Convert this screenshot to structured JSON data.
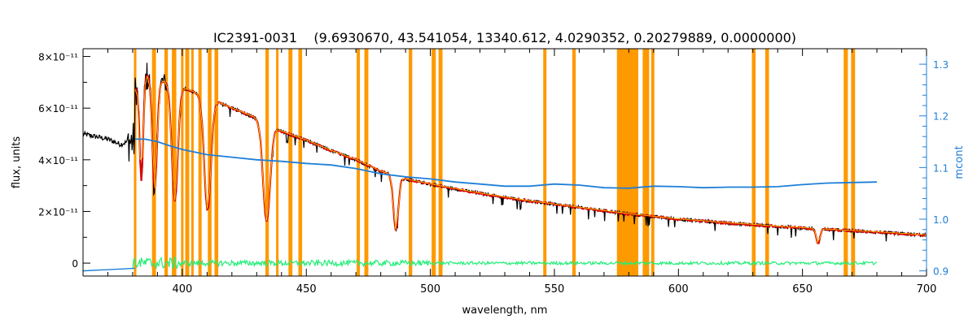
{
  "chart_data": {
    "type": "line",
    "title": "IC2391-0031    (9.6930670, 43.541054, 13340.612, 4.0290352, 0.20279889, 0.0000000)",
    "xlabel": "wavelength, nm",
    "ylabel_left": "flux, units",
    "ylabel_right": "mcont",
    "xlim": [
      360,
      700
    ],
    "ylim_left": [
      -5e-12,
      8.3e-11
    ],
    "ylim_right": [
      0.89,
      1.33
    ],
    "x_ticks": [
      400,
      450,
      500,
      550,
      600,
      650,
      700
    ],
    "y_left_ticks": [
      {
        "value": 0,
        "label": "0"
      },
      {
        "value": 2e-11,
        "label": "2×10⁻¹¹"
      },
      {
        "value": 4e-11,
        "label": "4×10⁻¹¹"
      },
      {
        "value": 6e-11,
        "label": "6×10⁻¹¹"
      },
      {
        "value": 8e-11,
        "label": "8×10⁻¹¹"
      }
    ],
    "y_right_ticks": [
      {
        "value": 0.9,
        "label": "0.9"
      },
      {
        "value": 1.0,
        "label": "1.0"
      },
      {
        "value": 1.1,
        "label": "1.1"
      },
      {
        "value": 1.2,
        "label": "1.2"
      },
      {
        "value": 1.3,
        "label": "1.3"
      }
    ],
    "masked_regions": [
      [
        380.5,
        381.5
      ],
      [
        387.8,
        389.4
      ],
      [
        392.8,
        394.2
      ],
      [
        395.8,
        397.6
      ],
      [
        399.5,
        400.5
      ],
      [
        401.2,
        402.8
      ],
      [
        403.6,
        404.6
      ],
      [
        406.5,
        407.8
      ],
      [
        410.3,
        411.8
      ],
      [
        413.0,
        414.5
      ],
      [
        433.5,
        434.9
      ],
      [
        437.8,
        438.8
      ],
      [
        442.8,
        444.4
      ],
      [
        446.8,
        448.3
      ],
      [
        470.3,
        471.6
      ],
      [
        473.4,
        475.0
      ],
      [
        491.3,
        492.7
      ],
      [
        500.5,
        502.2
      ],
      [
        503.3,
        504.9
      ],
      [
        545.5,
        546.8
      ],
      [
        557.2,
        558.6
      ],
      [
        575.2,
        583.8
      ],
      [
        585.6,
        588.2
      ],
      [
        589.0,
        590.3
      ],
      [
        629.6,
        631.1
      ],
      [
        635.0,
        636.5
      ],
      [
        666.6,
        668.3
      ],
      [
        669.6,
        671.2
      ]
    ],
    "balmer_lines": [
      {
        "w": 383.5,
        "d": 0.55,
        "s": 1.0
      },
      {
        "w": 388.9,
        "d": 0.6,
        "s": 1.3
      },
      {
        "w": 397.0,
        "d": 0.65,
        "s": 1.7
      },
      {
        "w": 410.2,
        "d": 0.68,
        "s": 1.9
      },
      {
        "w": 434.0,
        "d": 0.7,
        "s": 2.0
      },
      {
        "w": 486.1,
        "d": 0.62,
        "s": 1.4
      },
      {
        "w": 656.3,
        "d": 0.45,
        "s": 1.0
      }
    ],
    "observed_blue_end": {
      "x": [
        360,
        370,
        375,
        378
      ],
      "y": [
        5e-11,
        4.8e-11,
        4.6e-11,
        4.7e-11
      ]
    },
    "continuum_anchor": {
      "x": [
        381,
        385,
        390,
        400,
        410,
        420,
        430,
        440,
        450,
        460,
        470,
        480,
        490,
        500,
        520,
        540,
        560,
        580,
        600,
        620,
        640,
        660,
        680,
        700
      ],
      "y": [
        6.7e-11,
        7.3e-11,
        7.1e-11,
        6.8e-11,
        6.4e-11,
        6e-11,
        5.6e-11,
        5.1e-11,
        4.75e-11,
        4.35e-11,
        4e-11,
        3.55e-11,
        3.25e-11,
        3.05e-11,
        2.7e-11,
        2.4e-11,
        2.15e-11,
        1.9e-11,
        1.7e-11,
        1.55e-11,
        1.42e-11,
        1.3e-11,
        1.2e-11,
        1.08e-11
      ]
    },
    "mcont": {
      "x": [
        381,
        385,
        390,
        395,
        400,
        410,
        420,
        430,
        440,
        450,
        460,
        470,
        480,
        490,
        500,
        510,
        520,
        530,
        540,
        550,
        560,
        570,
        580,
        590,
        600,
        610,
        620,
        630,
        640,
        650,
        660,
        670,
        680
      ],
      "y": [
        1.155,
        1.155,
        1.15,
        1.142,
        1.135,
        1.125,
        1.12,
        1.115,
        1.112,
        1.108,
        1.105,
        1.098,
        1.088,
        1.082,
        1.078,
        1.072,
        1.068,
        1.064,
        1.064,
        1.068,
        1.066,
        1.061,
        1.06,
        1.064,
        1.063,
        1.061,
        1.062,
        1.062,
        1.063,
        1.067,
        1.07,
        1.071,
        1.072
      ]
    },
    "mcont_extension": {
      "x": [
        360,
        381
      ],
      "y": [
        0.9,
        0.905
      ]
    },
    "residual_range": [
      380,
      680
    ],
    "colors": {
      "observed": "#000000",
      "model": "#dd0000",
      "fit_highlight": "#ffee00",
      "mcont": "#1e7fd8",
      "residual": "#22ee77",
      "mask": "#ff9900",
      "axis": "#000000",
      "right_axis": "#1e7fd8"
    }
  }
}
